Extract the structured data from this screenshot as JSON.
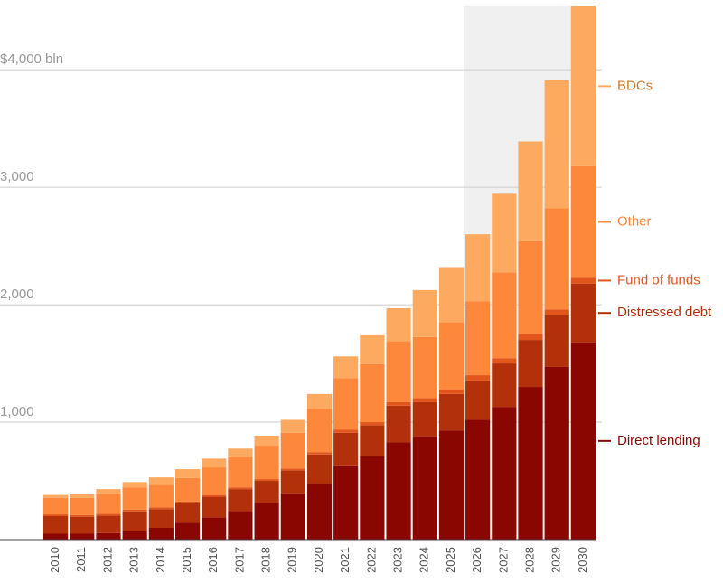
{
  "chart_data": {
    "type": "stacked_bar",
    "categories": [
      "2010",
      "2011",
      "2012",
      "2013",
      "2014",
      "2015",
      "2016",
      "2017",
      "2018",
      "2019",
      "2020",
      "2021",
      "2022",
      "2023",
      "2024",
      "2025",
      "2026",
      "2027",
      "2028",
      "2029",
      "2030"
    ],
    "series": [
      {
        "name": "Direct lending",
        "color": "#8a0600",
        "values": [
          50,
          50,
          55,
          70,
          100,
          145,
          190,
          245,
          315,
          395,
          475,
          625,
          710,
          830,
          880,
          930,
          1020,
          1130,
          1300,
          1470,
          1680
        ]
      },
      {
        "name": "Distressed debt",
        "color": "#b3310a",
        "values": [
          150,
          145,
          150,
          170,
          160,
          165,
          175,
          185,
          185,
          195,
          250,
          285,
          265,
          310,
          290,
          310,
          335,
          370,
          400,
          440,
          500
        ]
      },
      {
        "name": "Fund of funds",
        "color": "#e2561c",
        "values": [
          15,
          15,
          15,
          15,
          15,
          15,
          15,
          15,
          15,
          15,
          20,
          25,
          25,
          30,
          35,
          40,
          45,
          45,
          50,
          50,
          50
        ]
      },
      {
        "name": "Other",
        "color": "#fd873a",
        "values": [
          140,
          145,
          170,
          190,
          190,
          200,
          235,
          255,
          285,
          305,
          370,
          440,
          495,
          520,
          520,
          570,
          630,
          730,
          790,
          860,
          950
        ]
      },
      {
        "name": "BDCs",
        "color": "#fdaa60",
        "values": [
          25,
          30,
          40,
          45,
          65,
          75,
          75,
          75,
          85,
          110,
          125,
          185,
          245,
          280,
          400,
          470,
          570,
          670,
          850,
          1090,
          1360
        ]
      }
    ],
    "ylim": [
      0,
      4540
    ],
    "yticks": [
      {
        "value": 1000,
        "label": "1,000"
      },
      {
        "value": 2000,
        "label": "2,000"
      },
      {
        "value": 3000,
        "label": "3,000"
      },
      {
        "value": 4000,
        "label": "$4,000 bln"
      }
    ],
    "grid": true,
    "shaded_from": "2026",
    "legend": "right"
  }
}
